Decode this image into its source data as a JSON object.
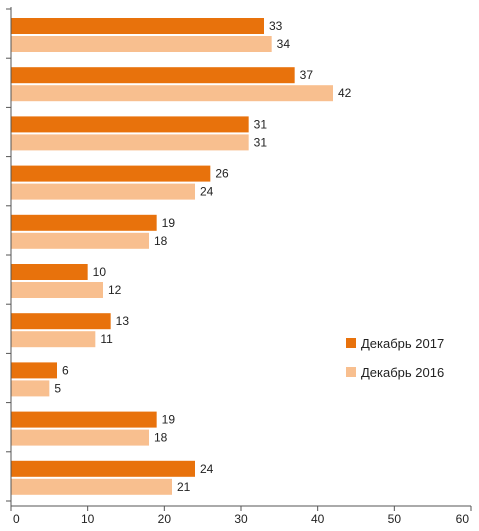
{
  "chart_data": {
    "type": "bar",
    "orientation": "horizontal",
    "categories": [
      "",
      "",
      "",
      "",
      "",
      "",
      "",
      "",
      "",
      ""
    ],
    "series": [
      {
        "name": "Декабрь 2017",
        "color": "#e8720c",
        "values": [
          33,
          37,
          31,
          26,
          19,
          10,
          13,
          6,
          19,
          24
        ]
      },
      {
        "name": "Декабрь 2016",
        "color": "#f8bf8f",
        "values": [
          34,
          42,
          31,
          24,
          18,
          12,
          11,
          5,
          18,
          21
        ]
      }
    ],
    "data_labels": [
      [
        "33",
        "37",
        "31",
        "26",
        "19",
        "10",
        "13",
        "6",
        "19",
        "24"
      ],
      [
        "34",
        "42",
        "31",
        "24",
        "18",
        "12",
        "11",
        "5",
        "18",
        "21"
      ]
    ],
    "xlim": [
      0,
      60
    ],
    "x_ticks": [
      0,
      10,
      20,
      30,
      40,
      50,
      60
    ],
    "x_tick_labels": [
      "0",
      "10",
      "20",
      "30",
      "40",
      "50",
      "60"
    ],
    "title": "",
    "xlabel": "",
    "ylabel": "",
    "grid": false,
    "legend_position": "right",
    "colors": {
      "axis": "#555555",
      "text": "#222222"
    }
  }
}
